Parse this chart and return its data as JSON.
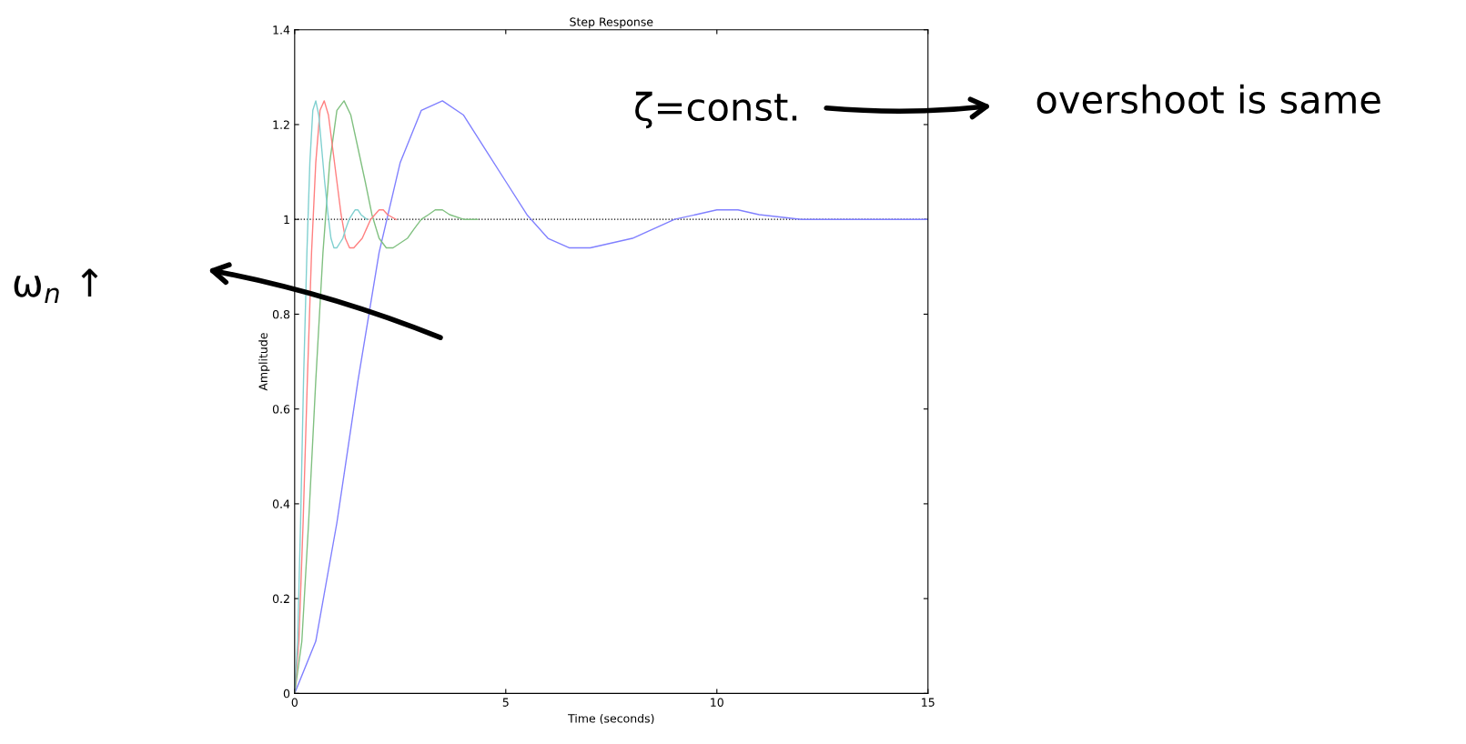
{
  "chart_data": {
    "type": "line",
    "title": "Step Response",
    "xlabel": "Time (seconds)",
    "ylabel": "Amplitude",
    "xlim": [
      0,
      15
    ],
    "xticks": [
      0,
      5,
      10,
      15
    ],
    "ylim": [
      0,
      1.4
    ],
    "yticks": [
      0,
      0.2,
      0.4,
      0.6,
      0.8,
      1,
      1.2,
      1.4
    ],
    "grid": false,
    "legend": false,
    "marker": "none",
    "line_style": "solid",
    "ref_lines": [
      {
        "axis": "y",
        "value": 1,
        "color": "#000000",
        "line_style": "dotted"
      }
    ],
    "annotations": [
      "ζ=const.",
      "overshoot is same",
      "ω$_{n}$ ↑"
    ],
    "series": [
      {
        "color": "#8080ff",
        "x": [
          0,
          0.5,
          1,
          1.5,
          2,
          2.5,
          3,
          3.5,
          4,
          4.5,
          5,
          5.5,
          6,
          6.5,
          7,
          7.5,
          8,
          8.5,
          9,
          9.5,
          10,
          10.5,
          11,
          12,
          13,
          14,
          15
        ],
        "values": [
          0,
          0.11,
          0.36,
          0.66,
          0.93,
          1.12,
          1.23,
          1.25,
          1.22,
          1.15,
          1.08,
          1.01,
          0.96,
          0.94,
          0.94,
          0.95,
          0.96,
          0.98,
          1.0,
          1.01,
          1.02,
          1.02,
          1.01,
          1.0,
          1.0,
          1.0,
          1.0
        ]
      },
      {
        "color": "#80c080",
        "x": [
          0,
          0.17,
          0.33,
          0.5,
          0.67,
          0.83,
          1,
          1.17,
          1.33,
          1.5,
          1.67,
          1.83,
          2,
          2.17,
          2.33,
          2.5,
          2.67,
          2.83,
          3,
          3.17,
          3.33,
          3.5,
          3.67,
          4,
          4.33
        ],
        "values": [
          0,
          0.11,
          0.36,
          0.66,
          0.93,
          1.12,
          1.23,
          1.25,
          1.22,
          1.15,
          1.08,
          1.01,
          0.96,
          0.94,
          0.94,
          0.95,
          0.96,
          0.98,
          1.0,
          1.01,
          1.02,
          1.02,
          1.01,
          1.0,
          1.0
        ]
      },
      {
        "color": "#ff8080",
        "x": [
          0,
          0.1,
          0.2,
          0.3,
          0.4,
          0.5,
          0.6,
          0.7,
          0.8,
          0.9,
          1,
          1.1,
          1.2,
          1.3,
          1.4,
          1.5,
          1.6,
          1.7,
          1.8,
          1.9,
          2,
          2.1,
          2.2,
          2.4
        ],
        "values": [
          0,
          0.11,
          0.36,
          0.66,
          0.93,
          1.12,
          1.23,
          1.25,
          1.22,
          1.15,
          1.08,
          1.01,
          0.96,
          0.94,
          0.94,
          0.95,
          0.96,
          0.98,
          1.0,
          1.01,
          1.02,
          1.02,
          1.01,
          1.0
        ]
      },
      {
        "color": "#80d0d0",
        "x": [
          0,
          0.07,
          0.14,
          0.21,
          0.29,
          0.36,
          0.43,
          0.5,
          0.57,
          0.64,
          0.71,
          0.79,
          0.86,
          0.93,
          1,
          1.07,
          1.14,
          1.21,
          1.29,
          1.36,
          1.43,
          1.5,
          1.57,
          1.71
        ],
        "values": [
          0,
          0.11,
          0.36,
          0.66,
          0.93,
          1.12,
          1.23,
          1.25,
          1.22,
          1.15,
          1.08,
          1.01,
          0.96,
          0.94,
          0.94,
          0.95,
          0.96,
          0.98,
          1.0,
          1.01,
          1.02,
          1.02,
          1.01,
          1.0
        ]
      }
    ]
  }
}
